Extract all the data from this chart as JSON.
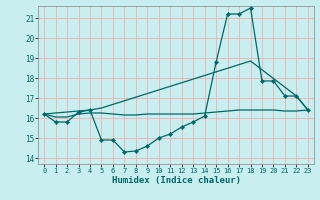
{
  "xlabel": "Humidex (Indice chaleur)",
  "xlim": [
    -0.5,
    23.5
  ],
  "ylim": [
    13.7,
    21.6
  ],
  "yticks": [
    14,
    15,
    16,
    17,
    18,
    19,
    20,
    21
  ],
  "xticks": [
    0,
    1,
    2,
    3,
    4,
    5,
    6,
    7,
    8,
    9,
    10,
    11,
    12,
    13,
    14,
    15,
    16,
    17,
    18,
    19,
    20,
    21,
    22,
    23
  ],
  "bg_color": "#c8eef0",
  "grid_color": "#e8b8b8",
  "line_color": "#006868",
  "curve_x": [
    0,
    1,
    2,
    3,
    4,
    5,
    6,
    7,
    8,
    9,
    10,
    11,
    12,
    13,
    14,
    15,
    16,
    17,
    18,
    19,
    20,
    21,
    22,
    23
  ],
  "curve_y": [
    16.2,
    15.8,
    15.8,
    16.3,
    16.4,
    14.9,
    14.9,
    14.3,
    14.35,
    14.6,
    15.0,
    15.2,
    15.55,
    15.8,
    16.1,
    18.8,
    21.2,
    21.2,
    21.5,
    17.85,
    17.85,
    17.1,
    17.1,
    16.4
  ],
  "flat_x": [
    0,
    1,
    2,
    3,
    4,
    5,
    6,
    7,
    8,
    9,
    10,
    11,
    12,
    13,
    14,
    15,
    16,
    17,
    18,
    19,
    20,
    21,
    22,
    23
  ],
  "flat_y": [
    16.2,
    16.05,
    16.05,
    16.2,
    16.25,
    16.25,
    16.2,
    16.15,
    16.15,
    16.2,
    16.2,
    16.2,
    16.2,
    16.2,
    16.25,
    16.3,
    16.35,
    16.4,
    16.4,
    16.4,
    16.4,
    16.35,
    16.35,
    16.4
  ],
  "diag_x": [
    0,
    4,
    5,
    18,
    22,
    23
  ],
  "diag_y": [
    16.2,
    16.4,
    16.5,
    18.85,
    17.1,
    16.4
  ]
}
